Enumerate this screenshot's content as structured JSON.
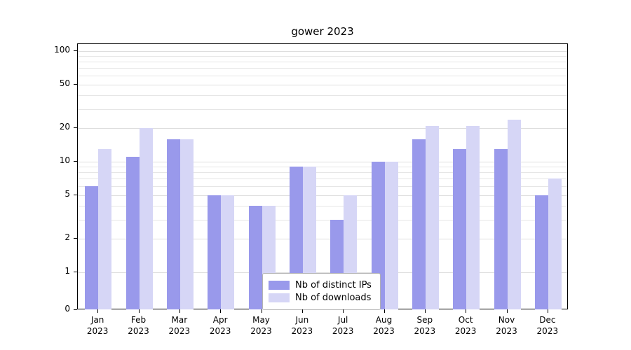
{
  "chart_data": {
    "type": "bar",
    "title": "gower 2023",
    "categories": [
      "Jan",
      "Feb",
      "Mar",
      "Apr",
      "May",
      "Jun",
      "Jul",
      "Aug",
      "Sep",
      "Oct",
      "Nov",
      "Dec"
    ],
    "year_label": "2023",
    "series": [
      {
        "name": "Nb of distinct IPs",
        "color": "#9999eb",
        "values": [
          6,
          11,
          16,
          5,
          4,
          9,
          3,
          10,
          16,
          13,
          13,
          5
        ]
      },
      {
        "name": "Nb of downloads",
        "color": "#d6d6f6",
        "values": [
          13,
          20,
          16,
          5,
          4,
          9,
          5,
          10,
          21,
          21,
          24,
          7
        ]
      }
    ],
    "yticks": [
      0,
      1,
      2,
      5,
      10,
      20,
      50,
      100
    ],
    "minor_yticks": [
      3,
      4,
      6,
      7,
      8,
      9,
      30,
      40,
      60,
      70,
      80,
      90
    ],
    "ylim": [
      0,
      100
    ],
    "scale": "log-with-zero-baseline",
    "grid": true,
    "legend_position": "bottom-center-inside",
    "axis_color": "#000000",
    "grid_color": "#e6e6e6"
  }
}
